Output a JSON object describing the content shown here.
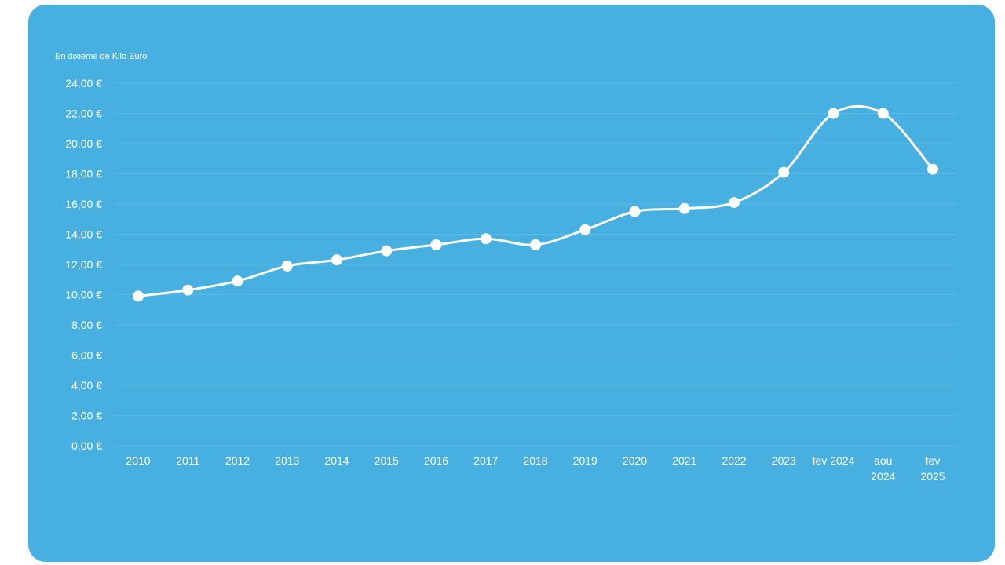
{
  "colors": {
    "background": "#48b0e0",
    "line": "#ffffff",
    "text": "#ffffff"
  },
  "chart_data": {
    "type": "line",
    "title": "",
    "unit_label": "En dixième de Kilo Euro",
    "xlabel": "",
    "ylabel": "",
    "categories": [
      "2010",
      "2011",
      "2012",
      "2013",
      "2014",
      "2015",
      "2016",
      "2017",
      "2018",
      "2019",
      "2020",
      "2021",
      "2022",
      "2023",
      "fev 2024",
      "aou 2024",
      "fev 2025"
    ],
    "values": [
      9.9,
      10.3,
      10.9,
      11.9,
      12.3,
      12.9,
      13.3,
      13.7,
      13.3,
      14.3,
      15.5,
      15.7,
      16.1,
      18.1,
      22.0,
      22.0,
      18.3
    ],
    "ylim": [
      0,
      24
    ],
    "yticks": [
      0,
      2,
      4,
      6,
      8,
      10,
      12,
      14,
      16,
      18,
      20,
      22,
      24
    ],
    "ytick_labels": [
      "0,00 €",
      "2,00 €",
      "4,00 €",
      "6,00 €",
      "8,00 €",
      "10,00 €",
      "12,00 €",
      "14,00 €",
      "16,00 €",
      "18,00 €",
      "20,00 €",
      "22,00 €",
      "24,00 €"
    ],
    "grid": true,
    "legend": "none",
    "smooth": true
  }
}
